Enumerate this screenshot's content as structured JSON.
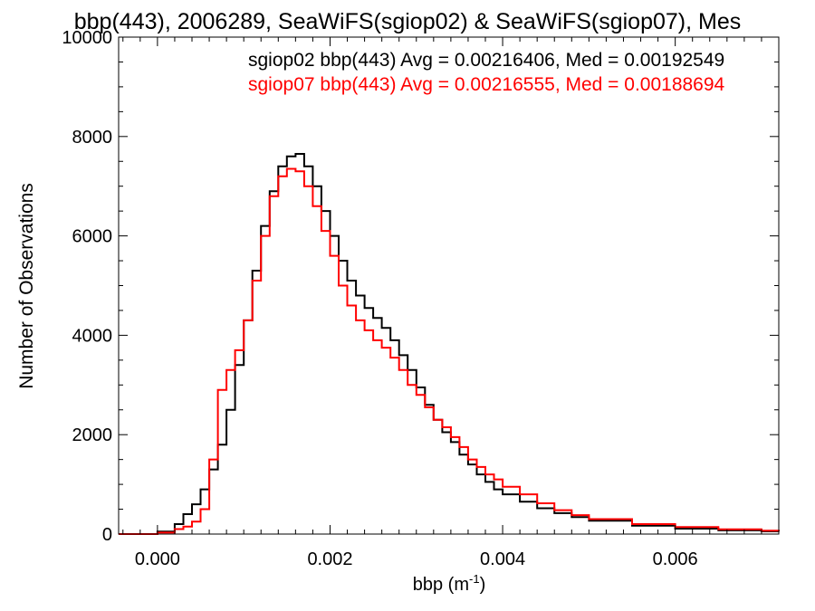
{
  "chart_data": {
    "type": "line",
    "title": "bbp(443), 2006289, SeaWiFS(sgiop02) & SeaWiFS(sgiop07), Mes",
    "xlabel": "bbp (m",
    "xlabel_sup": "-1",
    "xlabel_tail": ")",
    "ylabel": "Number of Observations",
    "xlim": [
      -0.00045,
      0.0072
    ],
    "ylim": [
      0,
      10000
    ],
    "xticks": [
      0.0,
      0.002,
      0.004,
      0.006
    ],
    "xtick_labels": [
      "0.000",
      "0.002",
      "0.004",
      "0.006"
    ],
    "yticks": [
      0,
      2000,
      4000,
      6000,
      8000,
      10000
    ],
    "ytick_labels": [
      "0",
      "2000",
      "4000",
      "6000",
      "8000",
      "10000"
    ],
    "grid": false,
    "step": true,
    "legend_lines": [
      {
        "text": "sgiop02 bbp(443) Avg = 0.00216406, Med = 0.00192549",
        "color": "#000000"
      },
      {
        "text": "sgiop07 bbp(443) Avg = 0.00216555, Med = 0.00188694",
        "color": "#ff0000"
      }
    ],
    "series": [
      {
        "name": "sgiop02",
        "color": "#000000",
        "x": [
          -0.00045,
          -0.0002,
          0.0,
          0.0002,
          0.0003,
          0.0004,
          0.0005,
          0.0006,
          0.0007,
          0.0008,
          0.0009,
          0.001,
          0.0011,
          0.0012,
          0.0013,
          0.0014,
          0.0015,
          0.0016,
          0.0017,
          0.0018,
          0.0019,
          0.002,
          0.0021,
          0.0022,
          0.0023,
          0.0024,
          0.0025,
          0.0026,
          0.0027,
          0.0028,
          0.0029,
          0.003,
          0.0031,
          0.0032,
          0.0033,
          0.0034,
          0.0035,
          0.0036,
          0.0037,
          0.0038,
          0.0039,
          0.004,
          0.0042,
          0.0044,
          0.0046,
          0.0048,
          0.005,
          0.0055,
          0.006,
          0.0065,
          0.007,
          0.0072
        ],
        "y": [
          0,
          0,
          50,
          200,
          400,
          600,
          900,
          1300,
          1800,
          2500,
          3400,
          4300,
          5300,
          6200,
          6900,
          7400,
          7600,
          7650,
          7400,
          7000,
          6500,
          6000,
          5500,
          5100,
          4800,
          4550,
          4350,
          4150,
          3900,
          3600,
          3300,
          2950,
          2600,
          2300,
          2050,
          1850,
          1600,
          1400,
          1200,
          1050,
          900,
          800,
          650,
          520,
          420,
          340,
          270,
          170,
          110,
          75,
          55,
          50
        ]
      },
      {
        "name": "sgiop07",
        "color": "#ff0000",
        "x": [
          -0.00045,
          -0.0002,
          0.0,
          0.0002,
          0.0003,
          0.0004,
          0.0005,
          0.0006,
          0.0007,
          0.0008,
          0.0009,
          0.001,
          0.0011,
          0.0012,
          0.0013,
          0.0014,
          0.0015,
          0.0016,
          0.0017,
          0.0018,
          0.0019,
          0.002,
          0.0021,
          0.0022,
          0.0023,
          0.0024,
          0.0025,
          0.0026,
          0.0027,
          0.0028,
          0.0029,
          0.003,
          0.0031,
          0.0032,
          0.0033,
          0.0034,
          0.0035,
          0.0036,
          0.0037,
          0.0038,
          0.0039,
          0.004,
          0.0042,
          0.0044,
          0.0046,
          0.0048,
          0.005,
          0.0055,
          0.006,
          0.0065,
          0.007,
          0.0072
        ],
        "y": [
          0,
          0,
          30,
          100,
          150,
          250,
          500,
          1500,
          2900,
          3300,
          3700,
          4300,
          5100,
          6000,
          6800,
          7200,
          7350,
          7300,
          7000,
          6600,
          6100,
          5600,
          5000,
          4600,
          4300,
          4100,
          3900,
          3750,
          3550,
          3300,
          3000,
          2800,
          2550,
          2300,
          2150,
          1950,
          1750,
          1500,
          1350,
          1200,
          1100,
          950,
          800,
          620,
          480,
          380,
          300,
          200,
          140,
          95,
          70,
          60
        ]
      }
    ]
  }
}
